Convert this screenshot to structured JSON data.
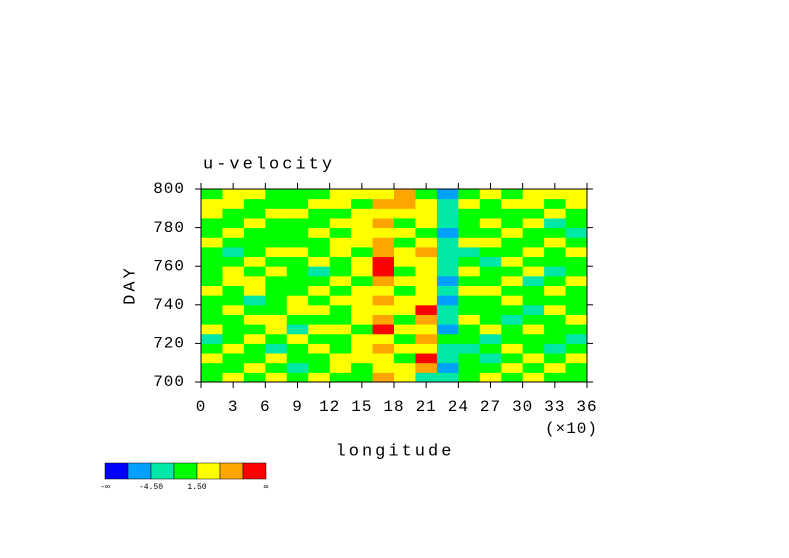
{
  "chart_data": {
    "type": "heatmap",
    "title": "u-velocity",
    "xlabel": "longitude",
    "ylabel": "DAY",
    "x_scale_label": "(×10)",
    "xlim": [
      0,
      36
    ],
    "xticks": [
      0,
      3,
      6,
      9,
      12,
      15,
      18,
      21,
      24,
      27,
      30,
      33,
      36
    ],
    "ylim": [
      700,
      800
    ],
    "yticks": [
      700,
      720,
      740,
      760,
      780,
      800
    ],
    "xbins": [
      0,
      2,
      4,
      6,
      8,
      10,
      12,
      14,
      16,
      18,
      20,
      22,
      24,
      26,
      28,
      30,
      32,
      34,
      36
    ],
    "ybins": [
      700,
      705,
      710,
      715,
      720,
      725,
      730,
      735,
      740,
      745,
      750,
      755,
      760,
      765,
      770,
      775,
      780,
      785,
      790,
      795,
      800
    ],
    "levels": [
      -7.5,
      -4.5,
      -1.5,
      1.5,
      4.5,
      7.5
    ],
    "colors": [
      "#0000ff",
      "#00a0ff",
      "#00e8a8",
      "#00ff00",
      "#ffff00",
      "#ffa500",
      "#ff0000"
    ],
    "colorbar_ticks": [
      {
        "value": null,
        "label": "-∞"
      },
      {
        "value": -4.5,
        "label": "-4.50"
      },
      {
        "value": 1.5,
        "label": "1.50"
      },
      {
        "value": null,
        "label": "∞"
      }
    ],
    "z": [
      [
        0.5,
        2.1,
        -0.3,
        1.8,
        0.2,
        2.6,
        0.4,
        -0.8,
        5.2,
        3.1,
        -2.0,
        -3.1,
        0.6,
        1.9,
        -0.5,
        2.4,
        0.3,
        -1.2
      ],
      [
        -0.4,
        1.2,
        2.5,
        0.1,
        -1.8,
        0.7,
        2.9,
        1.4,
        3.6,
        2.0,
        4.8,
        -5.2,
        -0.2,
        0.9,
        2.2,
        -0.6,
        1.7,
        0.5
      ],
      [
        1.9,
        -0.7,
        0.3,
        2.8,
        1.1,
        -0.2,
        1.6,
        3.3,
        2.4,
        -0.9,
        8.1,
        -4.0,
        1.3,
        -2.1,
        0.4,
        1.8,
        -0.3,
        2.3
      ],
      [
        0.2,
        2.4,
        1.0,
        -1.6,
        0.6,
        3.1,
        -0.5,
        2.2,
        6.3,
        1.7,
        3.9,
        -2.7,
        -1.9,
        0.8,
        2.5,
        0.1,
        -2.2,
        0.9
      ],
      [
        -1.9,
        0.4,
        2.7,
        0.9,
        2.0,
        -0.8,
        1.3,
        4.1,
        3.0,
        0.5,
        5.6,
        -1.4,
        0.7,
        -3.0,
        1.2,
        -0.4,
        1.4,
        -1.7
      ],
      [
        2.2,
        1.0,
        -0.6,
        1.5,
        -2.3,
        1.9,
        2.6,
        0.2,
        7.9,
        2.8,
        2.3,
        -6.1,
        -0.4,
        1.6,
        -1.1,
        2.7,
        0.6,
        1.1
      ],
      [
        0.7,
        -1.4,
        1.8,
        2.5,
        0.3,
        0.6,
        -0.9,
        3.4,
        4.7,
        -0.3,
        6.8,
        -3.5,
        2.1,
        0.2,
        -2.6,
        0.9,
        -0.8,
        2.4
      ],
      [
        -0.5,
        2.9,
        0.8,
        -0.2,
        1.7,
        2.3,
        1.1,
        2.0,
        3.8,
        1.5,
        9.2,
        -2.4,
        -1.0,
        1.1,
        0.5,
        -1.9,
        2.0,
        0.3
      ],
      [
        1.4,
        0.1,
        -1.7,
        1.3,
        2.6,
        -1.3,
        3.0,
        1.6,
        5.5,
        2.6,
        3.1,
        -4.8,
        0.4,
        -0.7,
        2.3,
        1.0,
        -0.5,
        -1.3
      ],
      [
        2.6,
        -0.9,
        1.5,
        0.4,
        -0.6,
        1.6,
        0.2,
        2.7,
        3.9,
        -1.1,
        4.4,
        -3.2,
        1.5,
        2.4,
        -1.4,
        0.3,
        1.9,
        0.8
      ],
      [
        -0.2,
        1.7,
        2.2,
        -1.1,
        1.4,
        0.8,
        2.5,
        -0.4,
        6.1,
        2.2,
        2.7,
        -5.7,
        -0.8,
        0.6,
        1.7,
        -2.8,
        0.7,
        2.1
      ],
      [
        1.1,
        2.3,
        -0.4,
        2.0,
        0.9,
        -2.1,
        1.2,
        3.8,
        8.4,
        0.9,
        3.5,
        -2.0,
        2.3,
        -1.5,
        0.2,
        1.5,
        -3.4,
        0.4
      ],
      [
        -1.3,
        0.5,
        1.9,
        0.7,
        -0.3,
        2.4,
        -0.7,
        2.1,
        9.6,
        3.4,
        1.8,
        -4.3,
        0.1,
        -3.6,
        1.9,
        0.6,
        1.2,
        -0.9
      ],
      [
        0.9,
        -2.0,
        0.6,
        2.9,
        2.1,
        0.3,
        1.8,
        1.0,
        7.2,
        1.6,
        4.6,
        -1.6,
        -2.5,
        0.7,
        -0.3,
        2.2,
        -0.4,
        1.6
      ],
      [
        2.0,
        1.3,
        -0.8,
        -0.5,
        1.0,
        1.4,
        2.4,
        3.5,
        5.0,
        -0.2,
        2.9,
        -3.8,
        1.6,
        2.5,
        0.8,
        -1.0,
        2.6,
        0.2
      ],
      [
        0.3,
        2.6,
        1.4,
        1.2,
        -1.5,
        2.9,
        0.5,
        2.6,
        4.3,
        2.3,
        1.2,
        -5.0,
        -0.6,
        -1.2,
        2.6,
        0.4,
        1.1,
        -2.0
      ],
      [
        -0.8,
        0.2,
        2.8,
        0.5,
        0.7,
        -0.6,
        1.5,
        1.7,
        6.6,
        1.0,
        3.2,
        -2.2,
        0.9,
        1.8,
        -0.9,
        2.8,
        -1.6,
        1.3
      ],
      [
        1.6,
        -1.1,
        0.9,
        2.2,
        2.4,
        1.2,
        -1.2,
        3.1,
        3.2,
        2.7,
        2.1,
        -3.3,
        -1.3,
        0.3,
        1.4,
        -0.2,
        2.3,
        0.6
      ],
      [
        2.4,
        1.9,
        -0.1,
        -0.9,
        1.3,
        2.7,
        2.0,
        0.8,
        5.8,
        4.9,
        1.5,
        -2.6,
        2.0,
        -0.5,
        3.0,
        1.6,
        0.8,
        2.7
      ],
      [
        0.6,
        2.8,
        1.6,
        1.4,
        -0.4,
        0.9,
        2.8,
        1.9,
        3.4,
        6.2,
        0.8,
        -6.6,
        1.0,
        2.2,
        0.9,
        2.9,
        1.5,
        2.0
      ]
    ]
  }
}
